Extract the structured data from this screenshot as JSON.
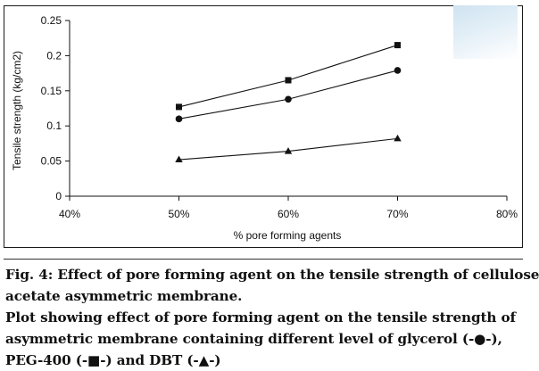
{
  "chart_data": {
    "type": "line",
    "title": "",
    "xlabel": "% pore forming agents",
    "ylabel": "Tensile strength (kg/cm2)",
    "x": [
      "50%",
      "60%",
      "70%"
    ],
    "xlim": [
      "40%",
      "80%"
    ],
    "x_ticks": [
      "40%",
      "50%",
      "60%",
      "70%",
      "80%"
    ],
    "ylim": [
      0,
      0.25
    ],
    "y_ticks": [
      "0",
      "0.05",
      "0.1",
      "0.15",
      "0.2",
      "0.25"
    ],
    "grid": false,
    "legend": "none",
    "series": [
      {
        "marker": "square",
        "values": [
          0.127,
          0.165,
          0.215
        ]
      },
      {
        "marker": "circle",
        "values": [
          0.11,
          0.138,
          0.179
        ]
      },
      {
        "marker": "triangle",
        "values": [
          0.052,
          0.064,
          0.082
        ]
      }
    ]
  },
  "caption": {
    "figure_title": "Fig. 4: Effect of pore forming agent on the tensile strength of cellulose acetate asymmetric membrane.",
    "line1": "Fig. 4: Effect of pore forming agent on the tensile strength of cellulose",
    "line2": "acetate asymmetric membrane.",
    "line3": "Plot showing effect of pore forming agent on the tensile strength of",
    "line4": "asymmetric membrane containing different level of glycerol (-●-),",
    "line5": "PEG-400 (-■-) and DBT (-▲-)"
  },
  "colors": {
    "ink": "#111111",
    "accent_tint": "#cfe3f1"
  }
}
